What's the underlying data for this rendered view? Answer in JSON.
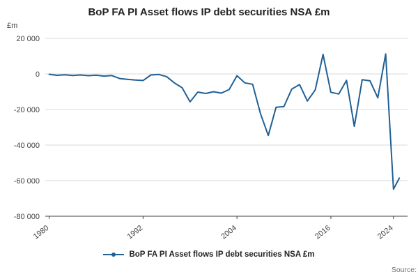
{
  "title": "BoP FA PI Asset flows IP debt securities NSA £m",
  "source_label": "Source:",
  "legend": {
    "label": "BoP FA PI Asset flows IP debt securities NSA £m",
    "color": "#206095"
  },
  "chart_data": {
    "type": "line",
    "title": "BoP FA PI Asset flows IP debt securities NSA £m",
    "xlabel": "",
    "ylabel": "£m",
    "line_color": "#206095",
    "grid": true,
    "legend_position": "bottom",
    "ylim": [
      -80000,
      20000
    ],
    "xlim": [
      1979.5,
      2025.8
    ],
    "yticks": [
      {
        "value": 20000,
        "label": "20 000"
      },
      {
        "value": 0,
        "label": "0"
      },
      {
        "value": -20000,
        "label": "-20 000"
      },
      {
        "value": -40000,
        "label": "-40 000"
      },
      {
        "value": -60000,
        "label": "-60 000"
      },
      {
        "value": -80000,
        "label": "-80 000"
      }
    ],
    "xticks": [
      {
        "value": 1980,
        "label": "1980"
      },
      {
        "value": 1992,
        "label": "1992"
      },
      {
        "value": 2004,
        "label": "2004"
      },
      {
        "value": 2016,
        "label": "2016"
      },
      {
        "value": 2024,
        "label": "2024"
      }
    ],
    "x": [
      1980,
      1981,
      1982,
      1983,
      1984,
      1985,
      1986,
      1987,
      1988,
      1989,
      1990,
      1991,
      1992,
      1993,
      1994,
      1995,
      1996,
      1997,
      1998,
      1999,
      2000,
      2001,
      2002,
      2003,
      2004,
      2005,
      2006,
      2007,
      2008,
      2009,
      2010,
      2011,
      2012,
      2013,
      2014,
      2015,
      2016,
      2017,
      2018,
      2019,
      2020,
      2021,
      2022,
      2023,
      2024,
      2024.75
    ],
    "values": [
      -200,
      -800,
      -500,
      -900,
      -600,
      -1000,
      -700,
      -1200,
      -900,
      -2600,
      -3000,
      -3400,
      -3700,
      -600,
      -300,
      -1500,
      -5000,
      -7800,
      -15700,
      -10200,
      -11000,
      -10000,
      -10800,
      -8800,
      -1000,
      -5000,
      -5800,
      -22300,
      -34600,
      -18700,
      -18400,
      -8500,
      -6000,
      -15200,
      -9000,
      11000,
      -10300,
      -11300,
      -3600,
      -29500,
      -3200,
      -3900,
      -13400,
      11200,
      -64800,
      -58600
    ]
  }
}
